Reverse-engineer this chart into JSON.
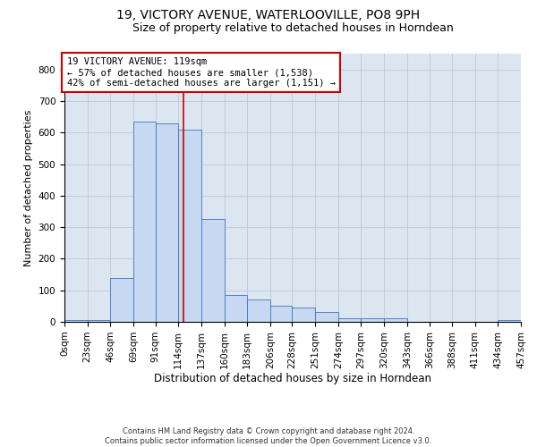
{
  "title1": "19, VICTORY AVENUE, WATERLOOVILLE, PO8 9PH",
  "title2": "Size of property relative to detached houses in Horndean",
  "xlabel": "Distribution of detached houses by size in Horndean",
  "ylabel": "Number of detached properties",
  "footer1": "Contains HM Land Registry data © Crown copyright and database right 2024.",
  "footer2": "Contains public sector information licensed under the Open Government Licence v3.0.",
  "annotation_line1": "19 VICTORY AVENUE: 119sqm",
  "annotation_line2": "← 57% of detached houses are smaller (1,538)",
  "annotation_line3": "42% of semi-detached houses are larger (1,151) →",
  "property_size": 119,
  "bin_edges": [
    0,
    23,
    46,
    69,
    91,
    114,
    137,
    160,
    183,
    206,
    228,
    251,
    274,
    297,
    320,
    343,
    366,
    388,
    411,
    434,
    457
  ],
  "bar_heights": [
    5,
    5,
    140,
    635,
    630,
    610,
    325,
    85,
    70,
    50,
    45,
    30,
    10,
    12,
    10,
    0,
    0,
    0,
    0,
    5
  ],
  "bar_color": "#c6d9f0",
  "bar_edge_color": "#4472c4",
  "grid_color": "#c0c8d8",
  "annotation_box_color": "#ffffff",
  "annotation_box_edge": "#cc0000",
  "vline_color": "#cc0000",
  "ylim": [
    0,
    850
  ],
  "yticks": [
    0,
    100,
    200,
    300,
    400,
    500,
    600,
    700,
    800
  ],
  "bg_color": "#dce6f1",
  "title1_fontsize": 10,
  "title2_fontsize": 9,
  "xlabel_fontsize": 8.5,
  "ylabel_fontsize": 8,
  "annotation_fontsize": 7.5,
  "tick_fontsize": 7.5
}
